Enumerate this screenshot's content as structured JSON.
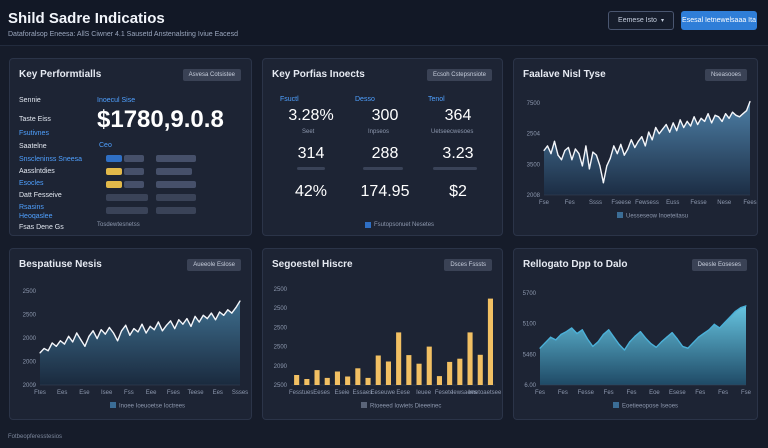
{
  "header": {
    "title": "Shild Sadre Indicatios",
    "subtitle": "Dataforalsop Eneesa: AllS Ciwner 4.1 Sausetd Anstenalsting Iviue Eacesd",
    "filter_button": "Eemese Isto",
    "primary_button": "Esesal Ietnewelsaaa Ita"
  },
  "kpi_panel": {
    "title": "Key Performtialls",
    "button": "Asvesa Cotsistee",
    "labels": [
      "Sennie",
      "Taste Eiss",
      "Fsutivnes",
      "Saatelne",
      "Snscleninss Sneesa",
      "Aasslntdies",
      "Esocles",
      "Datt Fesseive",
      "Rsasins",
      "Heoqaslee",
      "Fsas Dene Gs"
    ],
    "value_label": "Inoecul Sise",
    "big_value": "$1780,9.0.8",
    "period_label": "Ceo",
    "footnote": "Tosdewtesnetss"
  },
  "metrics_panel": {
    "title": "Key Porfias Inoects",
    "button": "Ecsoh Cstepsnsiote",
    "headers": [
      "Fsuctl",
      "Desso",
      "Tenol"
    ],
    "values": [
      [
        "3.28%",
        "300",
        "364"
      ],
      [
        "314",
        "288",
        "3.23"
      ],
      [
        "42%",
        "174.95",
        "$2"
      ]
    ],
    "row_captions": [
      "Seet",
      "Inpseos",
      "Uetseecwesoes"
    ],
    "footnote": "Fsutopsonuet Nesetes"
  },
  "trend_panel": {
    "title": "Faalave Nisl Tyse",
    "button": "Nseasooes",
    "ylabels": [
      "7500",
      "2504",
      "3500",
      "2008"
    ],
    "xlabels": [
      "Fse",
      "Fes",
      "Ssss",
      "Fseese",
      "Fewsess",
      "Euss",
      "Fesse",
      "Nese",
      "Fees"
    ],
    "legend": "Uesseseow Inoeteitasu",
    "chart_data": {
      "type": "area",
      "title": "Faalave Nisl Tyse",
      "xlabel": "",
      "ylabel": "",
      "ylim": [
        2000,
        8000
      ],
      "x": [
        0,
        1,
        2,
        3,
        4,
        5,
        6,
        7,
        8,
        9,
        10,
        11,
        12,
        13,
        14,
        15,
        16,
        17,
        18,
        19,
        20,
        21,
        22,
        23,
        24,
        25,
        26,
        27,
        28,
        29,
        30,
        31,
        32,
        33,
        34,
        35,
        36,
        37,
        38,
        39,
        40,
        41,
        42,
        43,
        44,
        45,
        46,
        47,
        48,
        49,
        50,
        51,
        52,
        53,
        54,
        55,
        56,
        57,
        58,
        59
      ],
      "values": [
        4900,
        5200,
        4700,
        5500,
        4600,
        4300,
        4900,
        5100,
        4300,
        5000,
        4700,
        3900,
        5200,
        3700,
        4800,
        4600,
        3900,
        2800,
        3900,
        4400,
        5200,
        4700,
        5300,
        4600,
        5000,
        5600,
        5100,
        5500,
        5800,
        5200,
        6100,
        5600,
        6400,
        6000,
        6300,
        6600,
        6100,
        6700,
        6200,
        6900,
        6400,
        6800,
        6500,
        7100,
        6600,
        7000,
        6800,
        7300,
        6700,
        7200,
        7100,
        6800,
        7300,
        7000,
        7400,
        7200,
        7100,
        7300,
        7500,
        8100
      ]
    }
  },
  "performance_panel": {
    "title": "Bespatiuse Nesis",
    "button": "Aueeole Eslose",
    "ylabels": [
      "2500",
      "2500",
      "2000",
      "2000",
      "2009"
    ],
    "xlabels": [
      "Ftes",
      "Ees",
      "Ese",
      "Isee",
      "Fss",
      "Eee",
      "Fses",
      "Teese",
      "Ees",
      "Ssses"
    ],
    "legend": "Inoee Ioeuoetse Ioctrees",
    "chart_data": {
      "type": "area",
      "title": "Bespatiuse Nesis",
      "xlabel": "",
      "ylabel": "",
      "ylim": [
        1800,
        2650
      ],
      "x": [
        0,
        1,
        2,
        3,
        4,
        5,
        6,
        7,
        8,
        9,
        10,
        11,
        12,
        13,
        14,
        15,
        16,
        17,
        18,
        19,
        20,
        21,
        22,
        23,
        24,
        25,
        26,
        27,
        28,
        29,
        30,
        31,
        32,
        33,
        34,
        35,
        36,
        37,
        38,
        39,
        40,
        41,
        42,
        43,
        44,
        45,
        46,
        47,
        48,
        49
      ],
      "values": [
        2090,
        2130,
        2110,
        2180,
        2150,
        2200,
        2170,
        2240,
        2190,
        2270,
        2210,
        2150,
        2240,
        2290,
        2220,
        2300,
        2260,
        2320,
        2270,
        2200,
        2290,
        2340,
        2250,
        2310,
        2280,
        2350,
        2270,
        2330,
        2300,
        2370,
        2290,
        2340,
        2380,
        2310,
        2390,
        2350,
        2400,
        2330,
        2420,
        2370,
        2430,
        2400,
        2450,
        2390,
        2460,
        2430,
        2480,
        2450,
        2500,
        2560
      ]
    }
  },
  "bar_panel": {
    "title": "Segoestel Hiscre",
    "button": "Dsces Fsssts",
    "ylabels": [
      "2500",
      "2500",
      "2500",
      "2500",
      "2090",
      "2500"
    ],
    "xlabels": [
      "Fesstues",
      "Eeses",
      "Eseie",
      "Essaes",
      "Eeseuwe",
      "Eese",
      "Ieuee",
      "Fesete",
      "Iewsaees",
      "Imetoaetsee"
    ],
    "legend": "Rtoeeed Iowiets Dieeeinec",
    "chart_data": {
      "type": "bar",
      "title": "Segoestel Hiscre",
      "xlabel": "",
      "ylabel": "",
      "ylim": [
        0,
        2700
      ],
      "categories": [
        "1",
        "2",
        "3",
        "4",
        "5",
        "6",
        "7",
        "8",
        "9",
        "10",
        "11",
        "12",
        "13",
        "14",
        "15",
        "16",
        "17",
        "18",
        "19",
        "20"
      ],
      "values": [
        280,
        170,
        420,
        200,
        380,
        240,
        470,
        200,
        830,
        660,
        1480,
        840,
        600,
        1080,
        250,
        650,
        740,
        1480,
        850,
        2430
      ]
    }
  },
  "ratio_panel": {
    "title": "Rellogato Dpp to Dalo",
    "button": "Deesle Eoseses",
    "ylabels": [
      "5700",
      "5100",
      "5460",
      "6.00"
    ],
    "xlabels": [
      "Fes",
      "Fes",
      "Fesse",
      "Fes",
      "Fes",
      "Eoe",
      "Esese",
      "Fes",
      "Fes",
      "Fse"
    ],
    "legend": "Eoetieeopose Iseoes",
    "chart_data": {
      "type": "area",
      "title": "Rellogato Dpp to Dalo",
      "xlabel": "",
      "ylabel": "",
      "ylim": [
        0,
        100
      ],
      "x": [
        0,
        1,
        2,
        3,
        4,
        5,
        6,
        7,
        8,
        9,
        10,
        11,
        12,
        13,
        14,
        15,
        16,
        17,
        18,
        19,
        20,
        21,
        22,
        23,
        24,
        25,
        26,
        27,
        28,
        29,
        30,
        31,
        32,
        33,
        34,
        35,
        36,
        37,
        38,
        39
      ],
      "values": [
        40,
        46,
        52,
        49,
        55,
        58,
        62,
        56,
        60,
        50,
        42,
        47,
        55,
        60,
        52,
        44,
        38,
        47,
        53,
        58,
        51,
        45,
        41,
        47,
        52,
        57,
        50,
        42,
        40,
        46,
        52,
        56,
        60,
        66,
        62,
        68,
        74,
        80,
        84,
        86
      ]
    }
  },
  "footer": {
    "text": "Fotbeopferesstesios"
  },
  "colors": {
    "background": "#161c2a",
    "panel": "#1d2434",
    "accent": "#2f7ed8",
    "bar": "#f2c063",
    "area_light": "#5fb6d6"
  }
}
